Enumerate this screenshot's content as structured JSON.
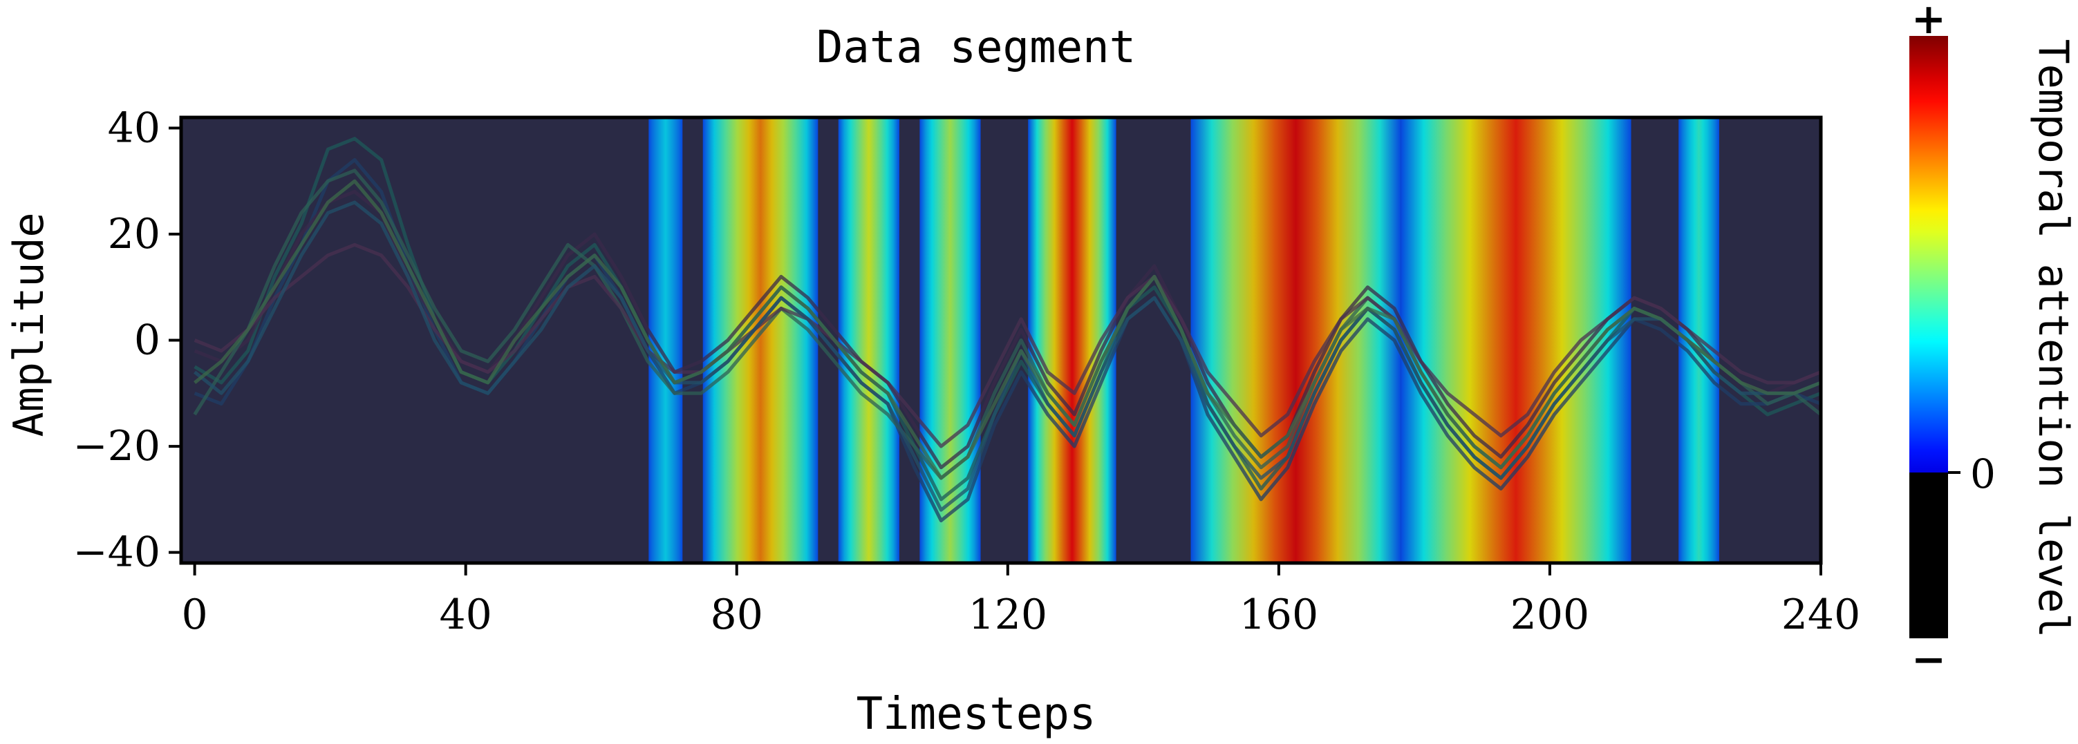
{
  "chart_data": {
    "type": "line",
    "title": "Data segment",
    "xlabel": "Timesteps",
    "ylabel": "Amplitude",
    "xlim": [
      -2,
      240
    ],
    "ylim": [
      -42,
      42
    ],
    "xticks": [
      0,
      40,
      80,
      120,
      160,
      200,
      240
    ],
    "yticks": [
      40,
      20,
      0,
      -20,
      -40
    ],
    "grid": false,
    "legend": "none",
    "background_color": "#2a2a45",
    "attention_regions": [
      {
        "start": 67,
        "end": 72,
        "peak": 0.35
      },
      {
        "start": 75,
        "end": 92,
        "peak": 0.75
      },
      {
        "start": 95,
        "end": 104,
        "peak": 0.6
      },
      {
        "start": 107,
        "end": 116,
        "peak": 0.55
      },
      {
        "start": 123,
        "end": 136,
        "peak": 0.88
      },
      {
        "start": 147,
        "end": 178,
        "peak": 0.9
      },
      {
        "start": 178,
        "end": 212,
        "peak": 0.85
      },
      {
        "start": 219,
        "end": 225,
        "peak": 0.42
      }
    ],
    "series": [
      {
        "values": [
          -5,
          -8,
          -2,
          12,
          22,
          36,
          38,
          34,
          18,
          4,
          -6,
          -8,
          -2,
          6,
          14,
          18,
          10,
          0,
          -8,
          -6,
          -2,
          4,
          10,
          6,
          0,
          -6,
          -10,
          -20,
          -30,
          -26,
          -14,
          -4,
          -12,
          -18,
          -6,
          6,
          10,
          2,
          -12,
          -20,
          -28,
          -22,
          -10,
          0,
          6,
          2,
          -8,
          -16,
          -22,
          -26,
          -20,
          -12,
          -6,
          0,
          6,
          4,
          0,
          -6,
          -10,
          -14,
          -12,
          -10
        ]
      },
      {
        "values": [
          -10,
          -12,
          -4,
          8,
          18,
          30,
          34,
          28,
          14,
          2,
          -8,
          -10,
          -4,
          4,
          12,
          16,
          8,
          -2,
          -10,
          -8,
          -4,
          2,
          8,
          4,
          -2,
          -8,
          -12,
          -24,
          -34,
          -30,
          -16,
          -6,
          -14,
          -20,
          -8,
          4,
          8,
          0,
          -14,
          -22,
          -30,
          -24,
          -12,
          -2,
          4,
          0,
          -10,
          -18,
          -24,
          -28,
          -22,
          -14,
          -8,
          -2,
          4,
          2,
          -2,
          -8,
          -12,
          -12,
          -10,
          -12
        ]
      },
      {
        "values": [
          -2,
          -4,
          0,
          10,
          20,
          26,
          28,
          24,
          12,
          4,
          -4,
          -6,
          0,
          8,
          16,
          20,
          12,
          2,
          -6,
          -4,
          0,
          6,
          12,
          8,
          2,
          -4,
          -8,
          -16,
          -24,
          -20,
          -8,
          2,
          -8,
          -14,
          -2,
          8,
          14,
          4,
          -8,
          -16,
          -22,
          -18,
          -6,
          4,
          10,
          6,
          -4,
          -12,
          -18,
          -22,
          -16,
          -8,
          -2,
          4,
          8,
          6,
          2,
          -4,
          -8,
          -10,
          -8,
          -6
        ]
      },
      {
        "values": [
          -14,
          -6,
          2,
          14,
          24,
          30,
          32,
          26,
          16,
          6,
          -2,
          -4,
          2,
          10,
          18,
          14,
          6,
          -4,
          -10,
          -10,
          -6,
          0,
          6,
          2,
          -4,
          -10,
          -14,
          -20,
          -26,
          -22,
          -10,
          0,
          -10,
          -16,
          -4,
          6,
          12,
          2,
          -10,
          -18,
          -24,
          -20,
          -8,
          2,
          8,
          4,
          -6,
          -14,
          -20,
          -24,
          -18,
          -10,
          -4,
          2,
          6,
          4,
          0,
          -4,
          -8,
          -12,
          -10,
          -14
        ]
      },
      {
        "values": [
          0,
          -2,
          2,
          8,
          12,
          16,
          18,
          16,
          10,
          2,
          -4,
          -6,
          -2,
          4,
          10,
          12,
          6,
          -2,
          -6,
          -6,
          -2,
          2,
          6,
          4,
          0,
          -4,
          -8,
          -14,
          -20,
          -16,
          -6,
          4,
          -6,
          -10,
          0,
          8,
          12,
          4,
          -6,
          -12,
          -18,
          -14,
          -4,
          4,
          8,
          4,
          -4,
          -10,
          -14,
          -18,
          -14,
          -6,
          0,
          4,
          8,
          6,
          2,
          -2,
          -6,
          -8,
          -8,
          -6
        ]
      },
      {
        "values": [
          -6,
          -10,
          -4,
          6,
          16,
          24,
          26,
          22,
          12,
          0,
          -8,
          -10,
          -4,
          2,
          10,
          14,
          8,
          -2,
          -8,
          -8,
          -4,
          2,
          8,
          4,
          -2,
          -8,
          -12,
          -22,
          -32,
          -28,
          -14,
          -2,
          -12,
          -18,
          -6,
          4,
          8,
          0,
          -12,
          -20,
          -26,
          -22,
          -10,
          0,
          6,
          2,
          -8,
          -16,
          -22,
          -26,
          -20,
          -12,
          -6,
          0,
          4,
          4,
          0,
          -6,
          -10,
          -10,
          -10,
          -8
        ]
      },
      {
        "values": [
          -8,
          -4,
          2,
          10,
          18,
          26,
          30,
          24,
          14,
          4,
          -6,
          -8,
          0,
          6,
          12,
          16,
          10,
          0,
          -8,
          -6,
          -2,
          4,
          10,
          6,
          0,
          -6,
          -10,
          -18,
          -26,
          -22,
          -12,
          -2,
          -10,
          -16,
          -4,
          6,
          12,
          2,
          -10,
          -16,
          -22,
          -18,
          -8,
          2,
          6,
          4,
          -6,
          -14,
          -20,
          -24,
          -18,
          -10,
          -4,
          2,
          6,
          4,
          0,
          -4,
          -8,
          -10,
          -10,
          -8
        ]
      }
    ],
    "series_colors": [
      "#1d5a5a",
      "#1f3e66",
      "#3a2a4a",
      "#2e5f55",
      "#4a3050",
      "#22506a",
      "#3c6a4a"
    ],
    "colorbar": {
      "label": "Temporal attention level",
      "top_label": "+",
      "bottom_label": "−",
      "zero_label": "0"
    }
  }
}
